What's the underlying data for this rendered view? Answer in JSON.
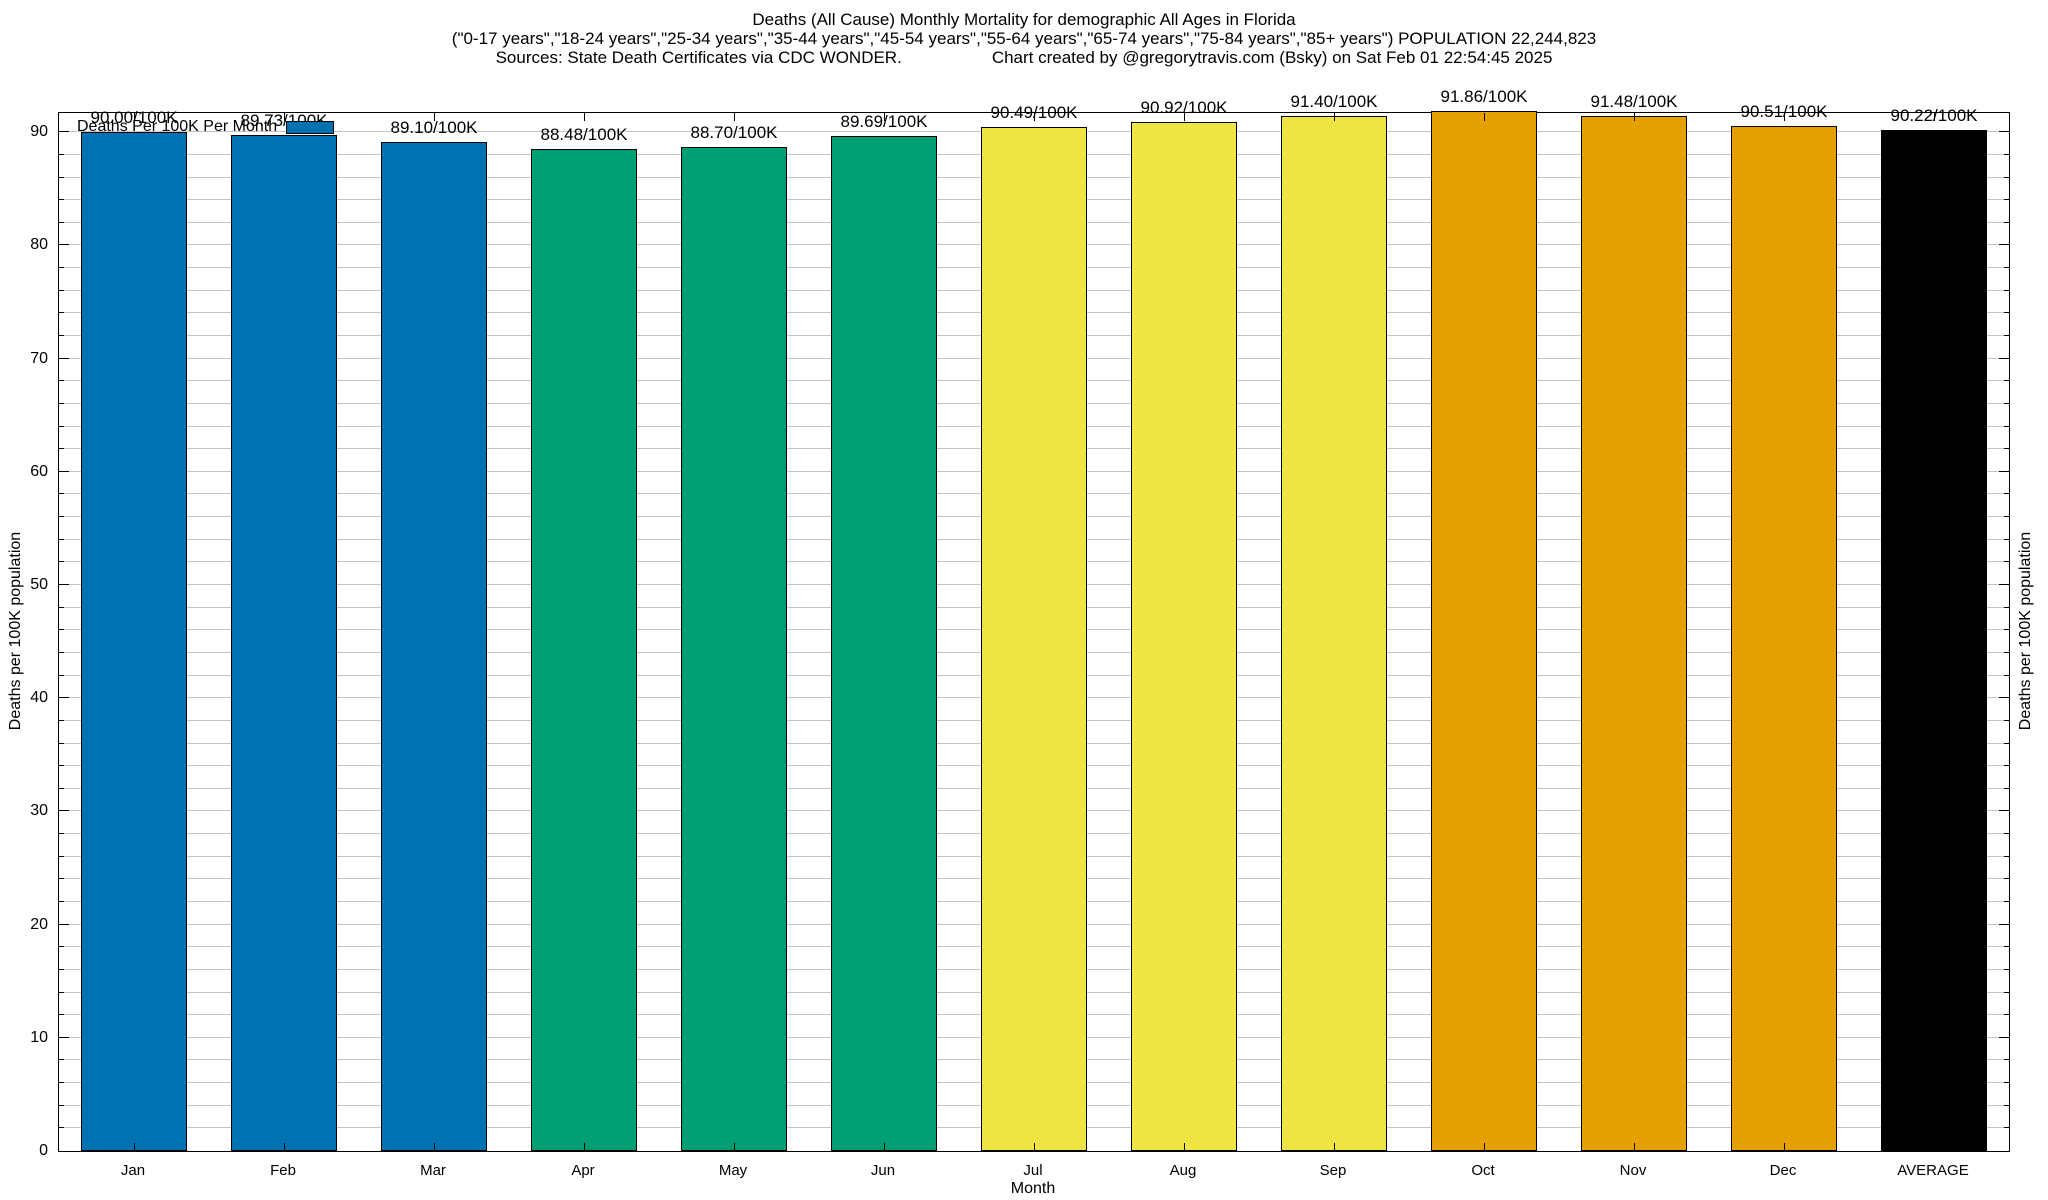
{
  "title": {
    "line1": "Deaths (All Cause) Monthly Mortality for demographic All Ages in Florida",
    "line2": "(\"0-17 years\",\"18-24 years\",\"25-34 years\",\"35-44 years\",\"45-54 years\",\"55-64 years\",\"65-74 years\",\"75-84 years\",\"85+ years\") POPULATION 22,244,823",
    "sources": "Sources: State Death Certificates via CDC WONDER.",
    "credit": "Chart created by @gregorytravis.com (Bsky) on Sat Feb 01 22:54:45 2025"
  },
  "legend": {
    "label": "Deaths Per 100K Per Month",
    "swatch_color": "#0072B2"
  },
  "chart_data": {
    "type": "bar",
    "title": "Deaths (All Cause) Monthly Mortality for demographic All Ages in Florida",
    "categories": [
      "Jan",
      "Feb",
      "Mar",
      "Apr",
      "May",
      "Jun",
      "Jul",
      "Aug",
      "Sep",
      "Oct",
      "Nov",
      "Dec",
      "AVERAGE"
    ],
    "values": [
      90.0,
      89.73,
      89.1,
      88.48,
      88.7,
      89.69,
      90.49,
      90.92,
      91.4,
      91.86,
      91.48,
      90.51,
      90.22
    ],
    "bar_labels": [
      "90.00/100K",
      "89.73/100K",
      "89.10/100K",
      "88.48/100K",
      "88.70/100K",
      "89.69/100K",
      "90.49/100K",
      "90.92/100K",
      "91.40/100K",
      "91.86/100K",
      "91.48/100K",
      "90.51/100K",
      "90.22/100K"
    ],
    "bar_colors": [
      "#0072B2",
      "#0072B2",
      "#0072B2",
      "#009E73",
      "#009E73",
      "#009E73",
      "#F0E442",
      "#F0E442",
      "#F0E442",
      "#E69F00",
      "#E69F00",
      "#E69F00",
      "#000000"
    ],
    "xlabel": "Month",
    "ylabel": "Deaths per 100K population",
    "y2label": "Deaths per 100K population",
    "ylim": [
      0,
      91.7
    ],
    "ytick_major": [
      0,
      10,
      20,
      30,
      40,
      50,
      60,
      70,
      80,
      90
    ],
    "ytick_minor_step": 2,
    "grid": true,
    "gridline_color": "#c4c4c4",
    "legend_position": "top-left",
    "border_color": "#000000"
  }
}
